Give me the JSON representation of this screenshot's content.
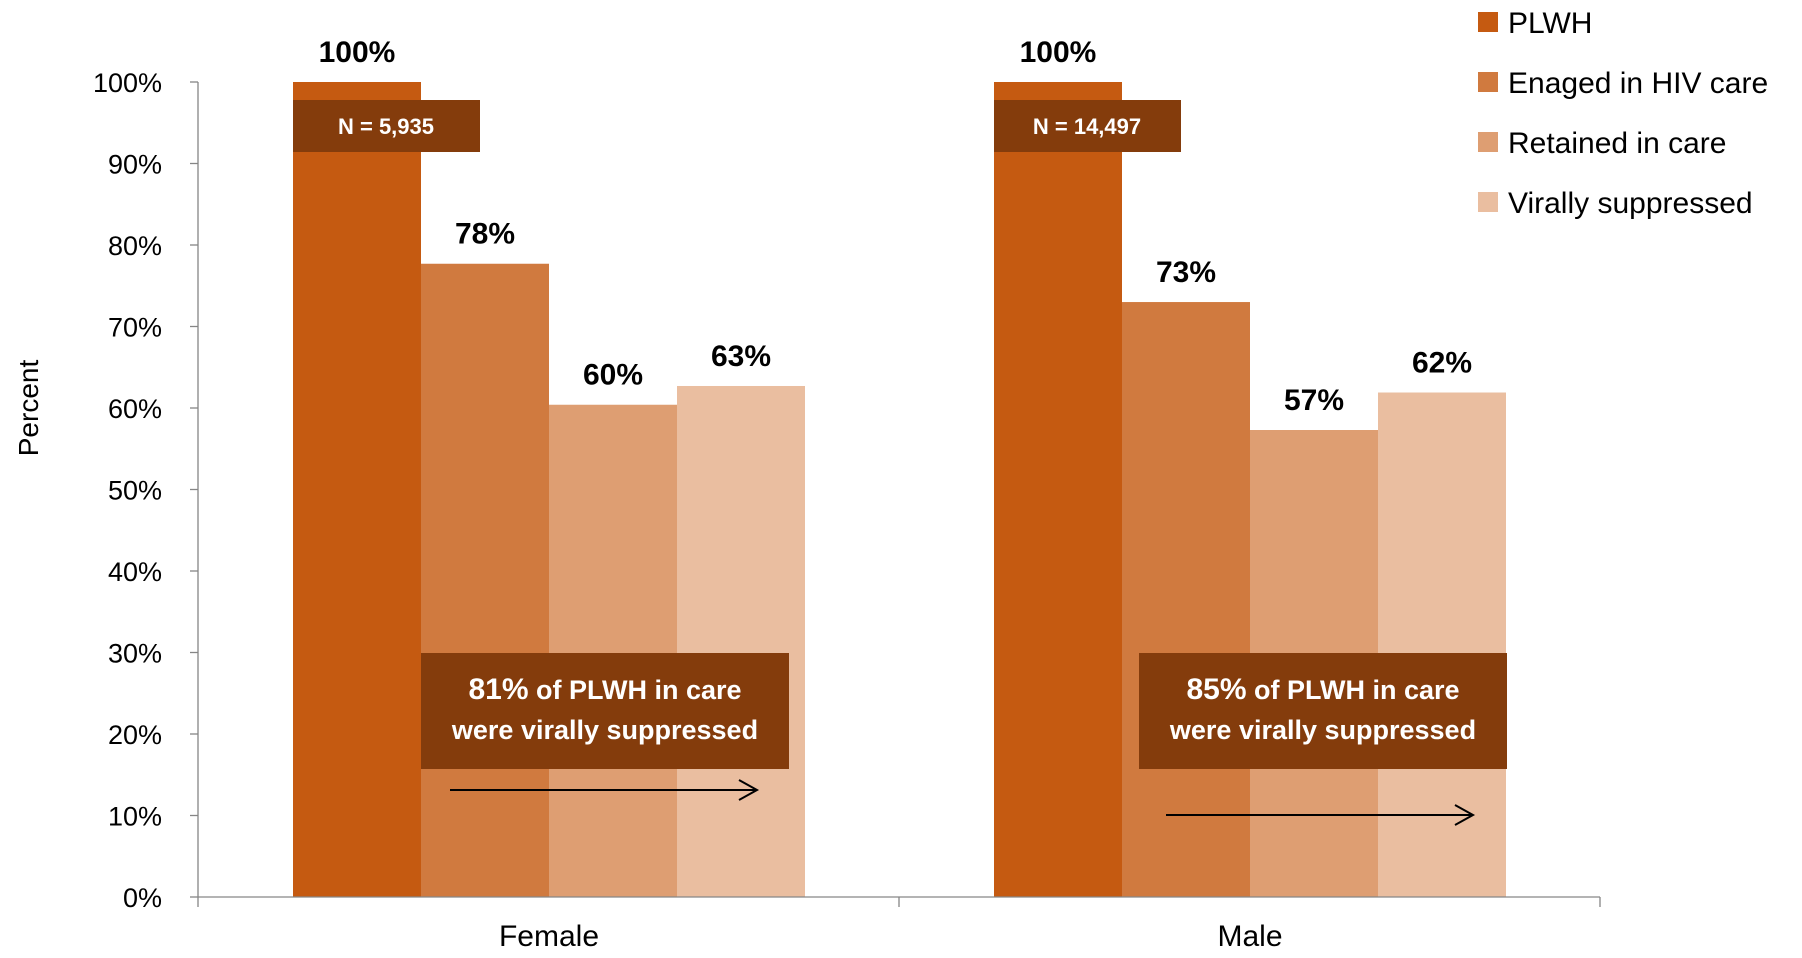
{
  "chart_data": {
    "type": "bar",
    "title": "",
    "xlabel": "",
    "ylabel": "Percent",
    "ylim": [
      0,
      100
    ],
    "y_ticks": [
      "0%",
      "10%",
      "20%",
      "30%",
      "40%",
      "50%",
      "60%",
      "70%",
      "80%",
      "90%",
      "100%"
    ],
    "categories": [
      "Female",
      "Male"
    ],
    "series": [
      {
        "name": "PLWH",
        "color": "#C55A11",
        "values": [
          100,
          100
        ],
        "labels": [
          "100%",
          "100%"
        ]
      },
      {
        "name": "Enaged in HIV care",
        "color": "#D07A3F",
        "values": [
          77.7,
          73
        ],
        "labels": [
          "78%",
          "73%"
        ]
      },
      {
        "name": "Retained in care",
        "color": "#DE9E72",
        "values": [
          60.4,
          57.3
        ],
        "labels": [
          "60%",
          "57%"
        ]
      },
      {
        "name": "Virally suppressed",
        "color": "#EABEA0",
        "values": [
          62.7,
          61.9
        ],
        "labels": [
          "63%",
          "62%"
        ]
      }
    ],
    "legend_position": "top-right",
    "grid": false,
    "n_boxes": [
      "N = 5,935",
      "N = 14,497"
    ],
    "annotations": [
      {
        "highlight": "81%",
        "text_line1": " of PLWH in care",
        "text_line2": "were virally suppressed"
      },
      {
        "highlight": "85%",
        "text_line1": " of PLWH in care",
        "text_line2": "were virally suppressed"
      }
    ],
    "box_color": "#843C0C"
  }
}
